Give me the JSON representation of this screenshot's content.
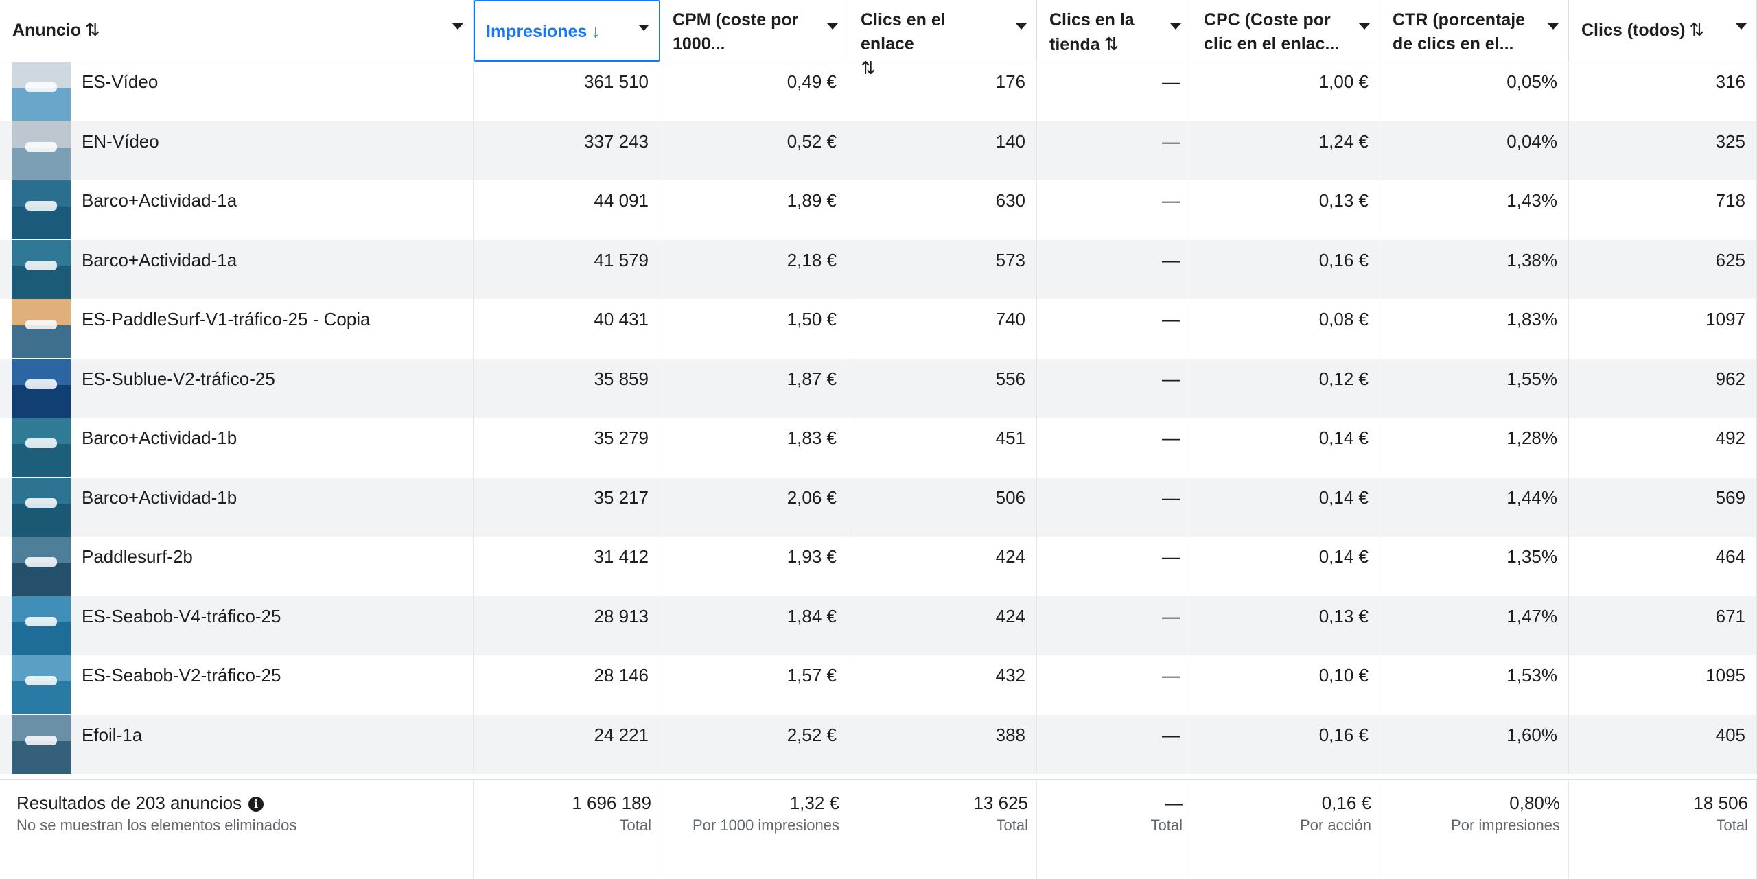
{
  "columns": [
    {
      "label": "Anuncio",
      "sort_icon": "⇅"
    },
    {
      "label": "Impresiones",
      "sort_icon": "↓"
    },
    {
      "label_line1": "CPM (coste por",
      "label_line2": "1000..."
    },
    {
      "label_line1": "Clics en el enlace",
      "label_line2": "",
      "sort_icon": "⇅"
    },
    {
      "label_line1": "Clics en la",
      "label_line2": "tienda",
      "sort_icon": "⇅"
    },
    {
      "label_line1": "CPC (Coste por",
      "label_line2": "clic en el enlac..."
    },
    {
      "label_line1": "CTR (porcentaje",
      "label_line2": "de clics en el..."
    },
    {
      "label": "Clics (todos)",
      "sort_icon": "⇅"
    }
  ],
  "rows": [
    {
      "name": "ES-Vídeo",
      "impressions": "361 510",
      "cpm": "0,49 €",
      "link_clicks": "176",
      "store_clicks": "—",
      "cpc": "1,00 €",
      "ctr": "0,05%",
      "clicks_all": "316",
      "thumb_sky": "#cfd8de",
      "thumb_sea": "#6aa6c9"
    },
    {
      "name": "EN-Vídeo",
      "impressions": "337 243",
      "cpm": "0,52 €",
      "link_clicks": "140",
      "store_clicks": "—",
      "cpc": "1,24 €",
      "ctr": "0,04%",
      "clicks_all": "325",
      "thumb_sky": "#bcc7cf",
      "thumb_sea": "#7d9fb3"
    },
    {
      "name": "Barco+Actividad-1a",
      "impressions": "44 091",
      "cpm": "1,89 €",
      "link_clicks": "630",
      "store_clicks": "—",
      "cpc": "0,13 €",
      "ctr": "1,43%",
      "clicks_all": "718",
      "thumb_sky": "#2a6f8f",
      "thumb_sea": "#1b5a7a"
    },
    {
      "name": "Barco+Actividad-1a",
      "impressions": "41 579",
      "cpm": "2,18 €",
      "link_clicks": "573",
      "store_clicks": "—",
      "cpc": "0,16 €",
      "ctr": "1,38%",
      "clicks_all": "625",
      "thumb_sky": "#2f7896",
      "thumb_sea": "#1c5b78"
    },
    {
      "name": "ES-PaddleSurf-V1-tráfico-25 - Copia",
      "impressions": "40 431",
      "cpm": "1,50 €",
      "link_clicks": "740",
      "store_clicks": "—",
      "cpc": "0,08 €",
      "ctr": "1,83%",
      "clicks_all": "1097",
      "thumb_sky": "#e0b07a",
      "thumb_sea": "#3f6f8f"
    },
    {
      "name": "ES-Sublue-V2-tráfico-25",
      "impressions": "35 859",
      "cpm": "1,87 €",
      "link_clicks": "556",
      "store_clicks": "—",
      "cpc": "0,12 €",
      "ctr": "1,55%",
      "clicks_all": "962",
      "thumb_sky": "#2b66a3",
      "thumb_sea": "#123f73"
    },
    {
      "name": "Barco+Actividad-1b",
      "impressions": "35 279",
      "cpm": "1,83 €",
      "link_clicks": "451",
      "store_clicks": "—",
      "cpc": "0,14 €",
      "ctr": "1,28%",
      "clicks_all": "492",
      "thumb_sky": "#2f7a95",
      "thumb_sea": "#1d5e7a"
    },
    {
      "name": "Barco+Actividad-1b",
      "impressions": "35 217",
      "cpm": "2,06 €",
      "link_clicks": "506",
      "store_clicks": "—",
      "cpc": "0,14 €",
      "ctr": "1,44%",
      "clicks_all": "569",
      "thumb_sky": "#2c7491",
      "thumb_sea": "#1a5874"
    },
    {
      "name": "Paddlesurf-2b",
      "impressions": "31 412",
      "cpm": "1,93 €",
      "link_clicks": "424",
      "store_clicks": "—",
      "cpc": "0,14 €",
      "ctr": "1,35%",
      "clicks_all": "464",
      "thumb_sky": "#4d7f99",
      "thumb_sea": "#24506b"
    },
    {
      "name": "ES-Seabob-V4-tráfico-25",
      "impressions": "28 913",
      "cpm": "1,84 €",
      "link_clicks": "424",
      "store_clicks": "—",
      "cpc": "0,13 €",
      "ctr": "1,47%",
      "clicks_all": "671",
      "thumb_sky": "#3f8fb8",
      "thumb_sea": "#1e6d99"
    },
    {
      "name": "ES-Seabob-V2-tráfico-25",
      "impressions": "28 146",
      "cpm": "1,57 €",
      "link_clicks": "432",
      "store_clicks": "—",
      "cpc": "0,10 €",
      "ctr": "1,53%",
      "clicks_all": "1095",
      "thumb_sky": "#5aa0c4",
      "thumb_sea": "#2a7aa6"
    },
    {
      "name": "Efoil-1a",
      "impressions": "24 221",
      "cpm": "2,52 €",
      "link_clicks": "388",
      "store_clicks": "—",
      "cpc": "0,16 €",
      "ctr": "1,60%",
      "clicks_all": "405",
      "thumb_sky": "#6b8fa6",
      "thumb_sea": "#35607c"
    }
  ],
  "footer": {
    "results_label": "Resultados de 203 anuncios",
    "results_note": "No se muestran los elementos eliminados",
    "impressions": {
      "value": "1 696 189",
      "sub": "Total"
    },
    "cpm": {
      "value": "1,32 €",
      "sub": "Por 1000 impresiones"
    },
    "link_clicks": {
      "value": "13 625",
      "sub": "Total"
    },
    "store_clicks": {
      "value": "—",
      "sub": "Total"
    },
    "cpc": {
      "value": "0,16 €",
      "sub": "Por acción"
    },
    "ctr": {
      "value": "0,80%",
      "sub": "Por impresiones"
    },
    "clicks_all": {
      "value": "18 506",
      "sub": "Total"
    }
  }
}
